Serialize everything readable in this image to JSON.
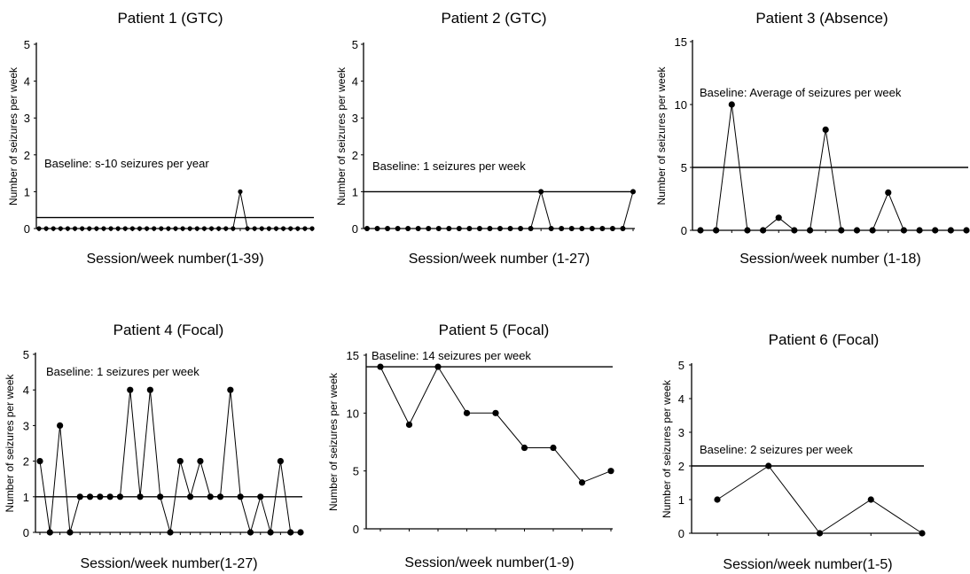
{
  "chart_data": [
    {
      "type": "line",
      "title": "Patient 1 (GTC)",
      "xlabel": "Session/week number(1-39)",
      "ylabel": "Number of seizures per week",
      "ylim": [
        0,
        5
      ],
      "yticks": [
        "0",
        "1",
        "2",
        "3",
        "4",
        "5"
      ],
      "x": [
        1,
        2,
        3,
        4,
        5,
        6,
        7,
        8,
        9,
        10,
        11,
        12,
        13,
        14,
        15,
        16,
        17,
        18,
        19,
        20,
        21,
        22,
        23,
        24,
        25,
        26,
        27,
        28,
        29,
        30,
        31,
        32,
        33,
        34,
        35,
        36,
        37,
        38,
        39
      ],
      "values": [
        0,
        0,
        0,
        0,
        0,
        0,
        0,
        0,
        0,
        0,
        0,
        0,
        0,
        0,
        0,
        0,
        0,
        0,
        0,
        0,
        0,
        0,
        0,
        0,
        0,
        0,
        0,
        0,
        1,
        0,
        0,
        0,
        0,
        0,
        0,
        0,
        0,
        0,
        0
      ],
      "baseline": {
        "value": 0.3,
        "label": "Baseline: s-10 seizures per year"
      }
    },
    {
      "type": "line",
      "title": "Patient 2 (GTC)",
      "xlabel": "Session/week number (1-27)",
      "ylabel": "Number of seizures per week",
      "ylim": [
        0,
        5
      ],
      "yticks": [
        "0",
        "1",
        "2",
        "3",
        "4",
        "5"
      ],
      "x": [
        1,
        2,
        3,
        4,
        5,
        6,
        7,
        8,
        9,
        10,
        11,
        12,
        13,
        14,
        15,
        16,
        17,
        18,
        19,
        20,
        21,
        22,
        23,
        24,
        25,
        26,
        27
      ],
      "values": [
        0,
        0,
        0,
        0,
        0,
        0,
        0,
        0,
        0,
        0,
        0,
        0,
        0,
        0,
        0,
        0,
        0,
        1,
        0,
        0,
        0,
        0,
        0,
        0,
        0,
        0,
        1
      ],
      "baseline": {
        "value": 1,
        "label": "Baseline: 1 seizures per week"
      }
    },
    {
      "type": "line",
      "title": "Patient 3 (Absence)",
      "xlabel": "Session/week number (1-18)",
      "ylabel": "Number of seizures per week",
      "ylim": [
        0,
        15
      ],
      "yticks": [
        "0",
        "5",
        "10",
        "15"
      ],
      "x": [
        1,
        2,
        3,
        4,
        5,
        6,
        7,
        8,
        9,
        10,
        11,
        12,
        13,
        14,
        15,
        16,
        17,
        18
      ],
      "values": [
        0,
        0,
        10,
        0,
        0,
        1,
        0,
        0,
        8,
        0,
        0,
        0,
        3,
        0,
        0,
        0,
        0,
        0
      ],
      "baseline": {
        "value": 5,
        "label": "Baseline: Average of seizures per week"
      }
    },
    {
      "type": "line",
      "title": "Patient 4 (Focal)",
      "xlabel": "Session/week number(1-27)",
      "ylabel": "Number of seizures per week",
      "ylim": [
        0,
        5
      ],
      "yticks": [
        "0",
        "1",
        "2",
        "3",
        "4",
        "5"
      ],
      "x": [
        1,
        2,
        3,
        4,
        5,
        6,
        7,
        8,
        9,
        10,
        11,
        12,
        13,
        14,
        15,
        16,
        17,
        18,
        19,
        20,
        21,
        22,
        23,
        24,
        25,
        26,
        27
      ],
      "values": [
        2,
        0,
        3,
        0,
        1,
        1,
        1,
        1,
        1,
        4,
        1,
        4,
        1,
        0,
        2,
        1,
        2,
        1,
        1,
        4,
        1,
        0,
        1,
        0,
        2,
        0,
        0
      ],
      "baseline": {
        "value": 1,
        "label": "Baseline: 1 seizures per week"
      }
    },
    {
      "type": "line",
      "title": "Patient 5 (Focal)",
      "xlabel": "Session/week number(1-9)",
      "ylabel": "Number of seizures per week",
      "ylim": [
        0,
        15
      ],
      "yticks": [
        "0",
        "5",
        "10",
        "15"
      ],
      "x": [
        1,
        2,
        3,
        4,
        5,
        6,
        7,
        8,
        9
      ],
      "values": [
        14,
        9,
        14,
        10,
        10,
        7,
        7,
        4,
        5
      ],
      "baseline": {
        "value": 14,
        "label": "Baseline: 14 seizures per week"
      }
    },
    {
      "type": "line",
      "title": "Patient 6 (Focal)",
      "xlabel": "Session/week number(1-5)",
      "ylabel": "Number of seizures per week",
      "ylim": [
        0,
        5
      ],
      "yticks": [
        "0",
        "1",
        "2",
        "3",
        "4",
        "5"
      ],
      "x": [
        1,
        2,
        3,
        4,
        5
      ],
      "values": [
        1,
        2,
        0,
        1,
        0
      ],
      "baseline": {
        "value": 2,
        "label": "Baseline: 2 seizures per week"
      }
    }
  ]
}
